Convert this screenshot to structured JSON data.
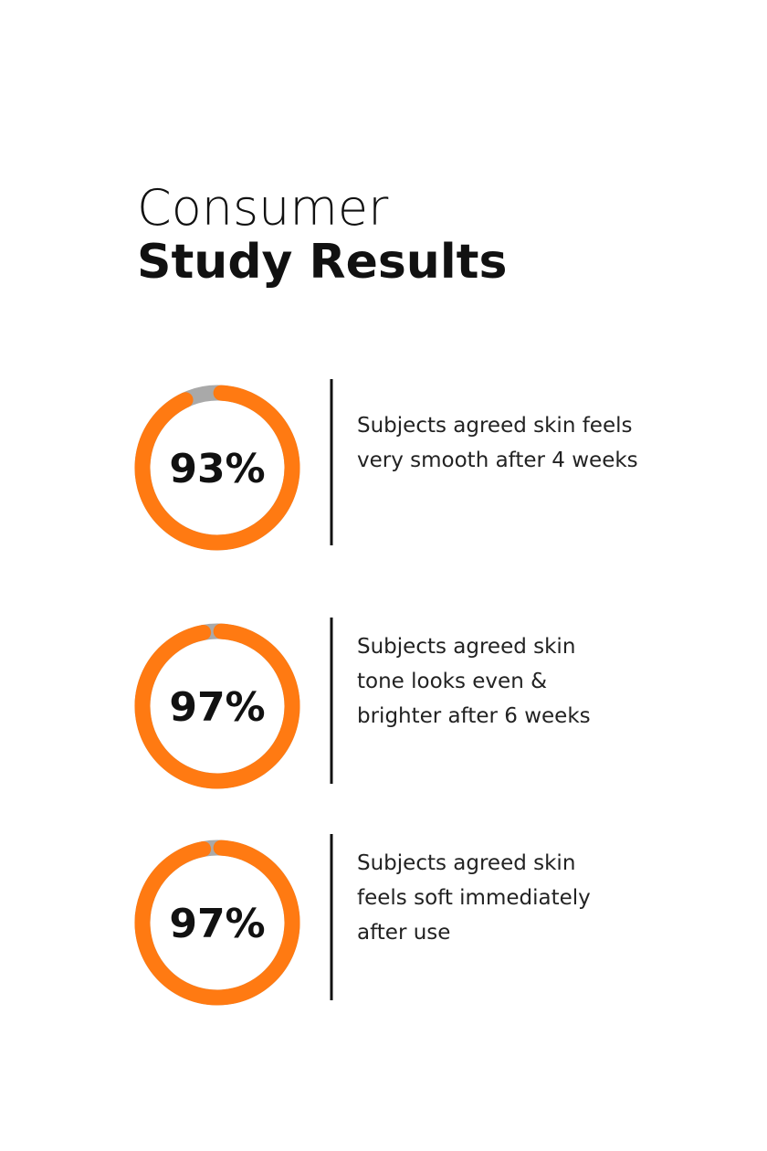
{
  "header": {
    "title_light": "Consumer",
    "title_bold": "Study Results"
  },
  "scale": [
    0,
    100
  ],
  "colors": {
    "filled": "#ff7a12",
    "rest": "#a9a9a9"
  },
  "stats": [
    {
      "value": 93,
      "value_label": "93%",
      "lines": [
        "Subjects agreed skin feels",
        "very smooth after 4 weeks"
      ]
    },
    {
      "value": 97,
      "value_label": "97%",
      "lines": [
        "Subjects agreed skin",
        "tone looks even &",
        "brighter after 6 weeks"
      ]
    },
    {
      "value": 97,
      "value_label": "97%",
      "lines": [
        "Subjects agreed skin",
        "feels soft immediately",
        "after use"
      ]
    }
  ]
}
